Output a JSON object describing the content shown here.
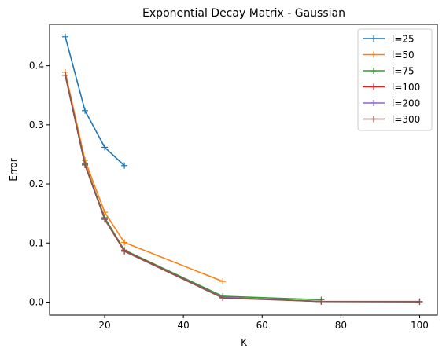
{
  "chart_data": {
    "type": "line",
    "title": "Exponential Decay Matrix - Gaussian",
    "xlabel": "K",
    "ylabel": "Error",
    "xlim": [
      6,
      104.5
    ],
    "ylim": [
      -0.022,
      0.47
    ],
    "xticks": [
      20,
      40,
      60,
      80,
      100
    ],
    "yticks": [
      0.0,
      0.1,
      0.2,
      0.3,
      0.4
    ],
    "xtick_labels": [
      "20",
      "40",
      "60",
      "80",
      "100"
    ],
    "ytick_labels": [
      "0.0",
      "0.1",
      "0.2",
      "0.3",
      "0.4"
    ],
    "grid": false,
    "legend_position": "top-right",
    "marker": "+",
    "series": [
      {
        "name": "l=25",
        "color": "#1f77b4",
        "x": [
          10,
          15,
          20,
          25
        ],
        "y": [
          0.449,
          0.324,
          0.262,
          0.231
        ]
      },
      {
        "name": "l=50",
        "color": "#ff7f0e",
        "x": [
          10,
          15,
          20,
          25,
          50
        ],
        "y": [
          0.389,
          0.24,
          0.152,
          0.101,
          0.035
        ]
      },
      {
        "name": "l=75",
        "color": "#2ca02c",
        "x": [
          10,
          15,
          20,
          25,
          50,
          75
        ],
        "y": [
          0.384,
          0.234,
          0.143,
          0.088,
          0.01,
          0.004
        ]
      },
      {
        "name": "l=100",
        "color": "#d62728",
        "x": [
          10,
          15,
          20,
          25,
          50,
          75,
          100
        ],
        "y": [
          0.384,
          0.233,
          0.141,
          0.087,
          0.008,
          0.001,
          0.001
        ]
      },
      {
        "name": "l=200",
        "color": "#9467bd",
        "x": [
          10,
          15,
          20,
          25,
          50,
          75,
          100
        ],
        "y": [
          0.384,
          0.233,
          0.141,
          0.086,
          0.008,
          0.001,
          0.0005
        ]
      },
      {
        "name": "l=300",
        "color": "#8c564b",
        "x": [
          10,
          15,
          20,
          25,
          50,
          75,
          100
        ],
        "y": [
          0.384,
          0.232,
          0.14,
          0.086,
          0.007,
          0.001,
          0.0005
        ]
      }
    ]
  }
}
